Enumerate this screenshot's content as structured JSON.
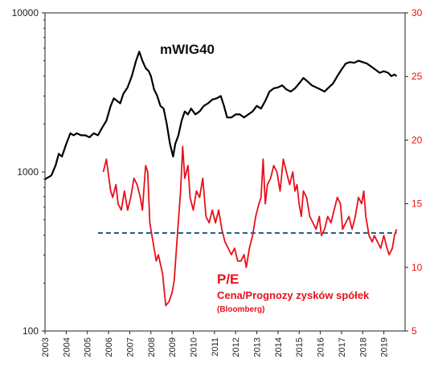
{
  "colors": {
    "index_line": "#000000",
    "pe_line": "#e8101a",
    "reference_line": "#1f5f8b",
    "right_axis": "#e8101a"
  },
  "chart_data": {
    "type": "line",
    "title": "mWIG40",
    "annotation": {
      "line1": "P/E",
      "line2": "Cena/Prognozy zysków spółek",
      "line3": "(Bloomberg)"
    },
    "x_axis": {
      "range": [
        2003.0,
        2020.0
      ],
      "tick_labels": [
        "2003",
        "2004",
        "2005",
        "2006",
        "2007",
        "2008",
        "2009",
        "2010",
        "2011",
        "2012",
        "2013",
        "2014",
        "2015",
        "2016",
        "2017",
        "2018",
        "2019"
      ]
    },
    "y_left": {
      "scale": "log",
      "range": [
        100,
        10000
      ],
      "tick_labels": [
        "100",
        "1000",
        "10000"
      ]
    },
    "y_right": {
      "scale": "linear",
      "range": [
        5,
        30
      ],
      "tick_labels": [
        "5",
        "10",
        "15",
        "20",
        "25",
        "30"
      ]
    },
    "grid": false,
    "series": [
      {
        "name": "mWIG40",
        "axis": "left",
        "points": [
          [
            2003.0,
            900
          ],
          [
            2003.3,
            950
          ],
          [
            2003.5,
            1100
          ],
          [
            2003.65,
            1300
          ],
          [
            2003.8,
            1250
          ],
          [
            2004.0,
            1500
          ],
          [
            2004.2,
            1750
          ],
          [
            2004.35,
            1700
          ],
          [
            2004.5,
            1750
          ],
          [
            2004.7,
            1700
          ],
          [
            2004.9,
            1700
          ],
          [
            2005.1,
            1650
          ],
          [
            2005.3,
            1750
          ],
          [
            2005.5,
            1700
          ],
          [
            2005.7,
            1900
          ],
          [
            2005.9,
            2100
          ],
          [
            2006.1,
            2600
          ],
          [
            2006.25,
            2900
          ],
          [
            2006.4,
            2800
          ],
          [
            2006.55,
            2700
          ],
          [
            2006.7,
            3100
          ],
          [
            2006.9,
            3400
          ],
          [
            2007.1,
            4000
          ],
          [
            2007.3,
            5000
          ],
          [
            2007.45,
            5700
          ],
          [
            2007.6,
            5000
          ],
          [
            2007.75,
            4500
          ],
          [
            2007.9,
            4300
          ],
          [
            2008.0,
            4000
          ],
          [
            2008.15,
            3300
          ],
          [
            2008.3,
            3000
          ],
          [
            2008.45,
            2600
          ],
          [
            2008.6,
            2500
          ],
          [
            2008.75,
            2000
          ],
          [
            2008.9,
            1500
          ],
          [
            2009.05,
            1250
          ],
          [
            2009.15,
            1500
          ],
          [
            2009.3,
            1700
          ],
          [
            2009.45,
            2100
          ],
          [
            2009.6,
            2400
          ],
          [
            2009.75,
            2300
          ],
          [
            2009.9,
            2500
          ],
          [
            2010.1,
            2300
          ],
          [
            2010.3,
            2400
          ],
          [
            2010.5,
            2600
          ],
          [
            2010.7,
            2700
          ],
          [
            2010.9,
            2850
          ],
          [
            2011.1,
            2900
          ],
          [
            2011.3,
            3000
          ],
          [
            2011.45,
            2600
          ],
          [
            2011.6,
            2200
          ],
          [
            2011.8,
            2200
          ],
          [
            2012.0,
            2300
          ],
          [
            2012.2,
            2300
          ],
          [
            2012.4,
            2200
          ],
          [
            2012.6,
            2300
          ],
          [
            2012.8,
            2400
          ],
          [
            2013.0,
            2600
          ],
          [
            2013.2,
            2500
          ],
          [
            2013.4,
            2800
          ],
          [
            2013.6,
            3200
          ],
          [
            2013.8,
            3350
          ],
          [
            2014.0,
            3400
          ],
          [
            2014.2,
            3500
          ],
          [
            2014.4,
            3300
          ],
          [
            2014.6,
            3200
          ],
          [
            2014.8,
            3350
          ],
          [
            2015.0,
            3600
          ],
          [
            2015.2,
            3900
          ],
          [
            2015.4,
            3700
          ],
          [
            2015.6,
            3500
          ],
          [
            2015.8,
            3400
          ],
          [
            2016.0,
            3300
          ],
          [
            2016.2,
            3200
          ],
          [
            2016.4,
            3400
          ],
          [
            2016.6,
            3600
          ],
          [
            2016.8,
            4000
          ],
          [
            2017.0,
            4400
          ],
          [
            2017.2,
            4800
          ],
          [
            2017.4,
            4900
          ],
          [
            2017.6,
            4850
          ],
          [
            2017.8,
            5000
          ],
          [
            2018.0,
            4900
          ],
          [
            2018.2,
            4800
          ],
          [
            2018.4,
            4600
          ],
          [
            2018.6,
            4400
          ],
          [
            2018.8,
            4200
          ],
          [
            2019.0,
            4300
          ],
          [
            2019.2,
            4200
          ],
          [
            2019.35,
            4000
          ],
          [
            2019.5,
            4100
          ],
          [
            2019.6,
            4000
          ]
        ]
      },
      {
        "name": "P/E",
        "axis": "right",
        "points": [
          [
            2005.75,
            17.5
          ],
          [
            2005.9,
            18.5
          ],
          [
            2006.1,
            16.0
          ],
          [
            2006.2,
            15.5
          ],
          [
            2006.35,
            16.5
          ],
          [
            2006.45,
            15.0
          ],
          [
            2006.6,
            14.5
          ],
          [
            2006.75,
            16.0
          ],
          [
            2006.9,
            14.5
          ],
          [
            2007.05,
            15.5
          ],
          [
            2007.2,
            17.0
          ],
          [
            2007.35,
            16.5
          ],
          [
            2007.5,
            15.5
          ],
          [
            2007.6,
            14.5
          ],
          [
            2007.75,
            18.0
          ],
          [
            2007.85,
            17.5
          ],
          [
            2007.95,
            13.5
          ],
          [
            2008.1,
            12.0
          ],
          [
            2008.25,
            10.5
          ],
          [
            2008.35,
            11.0
          ],
          [
            2008.55,
            9.5
          ],
          [
            2008.7,
            7.0
          ],
          [
            2008.85,
            7.3
          ],
          [
            2009.0,
            8.0
          ],
          [
            2009.1,
            9.0
          ],
          [
            2009.25,
            12.5
          ],
          [
            2009.4,
            16.0
          ],
          [
            2009.5,
            19.5
          ],
          [
            2009.6,
            17.0
          ],
          [
            2009.75,
            18.0
          ],
          [
            2009.85,
            15.5
          ],
          [
            2010.0,
            14.5
          ],
          [
            2010.15,
            16.0
          ],
          [
            2010.3,
            15.5
          ],
          [
            2010.45,
            17.0
          ],
          [
            2010.6,
            14.0
          ],
          [
            2010.75,
            13.5
          ],
          [
            2010.9,
            14.5
          ],
          [
            2011.05,
            13.5
          ],
          [
            2011.2,
            14.5
          ],
          [
            2011.35,
            13.0
          ],
          [
            2011.5,
            12.0
          ],
          [
            2011.65,
            11.5
          ],
          [
            2011.8,
            11.0
          ],
          [
            2011.95,
            11.5
          ],
          [
            2012.1,
            10.5
          ],
          [
            2012.25,
            10.5
          ],
          [
            2012.4,
            11.0
          ],
          [
            2012.5,
            10.0
          ],
          [
            2012.65,
            11.5
          ],
          [
            2012.8,
            12.5
          ],
          [
            2012.95,
            14.0
          ],
          [
            2013.1,
            15.0
          ],
          [
            2013.2,
            15.5
          ],
          [
            2013.3,
            18.5
          ],
          [
            2013.4,
            15.0
          ],
          [
            2013.5,
            16.5
          ],
          [
            2013.65,
            17.0
          ],
          [
            2013.8,
            18.0
          ],
          [
            2013.95,
            17.5
          ],
          [
            2014.1,
            16.0
          ],
          [
            2014.25,
            18.5
          ],
          [
            2014.4,
            17.5
          ],
          [
            2014.55,
            16.5
          ],
          [
            2014.7,
            17.5
          ],
          [
            2014.8,
            16.0
          ],
          [
            2014.9,
            16.5
          ],
          [
            2015.0,
            15.0
          ],
          [
            2015.1,
            14.0
          ],
          [
            2015.2,
            16.0
          ],
          [
            2015.35,
            15.5
          ],
          [
            2015.5,
            14.0
          ],
          [
            2015.65,
            13.5
          ],
          [
            2015.8,
            13.0
          ],
          [
            2015.95,
            14.0
          ],
          [
            2016.05,
            12.5
          ],
          [
            2016.2,
            13.0
          ],
          [
            2016.35,
            14.0
          ],
          [
            2016.5,
            13.5
          ],
          [
            2016.65,
            14.5
          ],
          [
            2016.8,
            15.5
          ],
          [
            2016.95,
            15.0
          ],
          [
            2017.05,
            13.0
          ],
          [
            2017.2,
            13.5
          ],
          [
            2017.35,
            14.0
          ],
          [
            2017.5,
            13.0
          ],
          [
            2017.65,
            14.0
          ],
          [
            2017.8,
            15.5
          ],
          [
            2017.95,
            15.0
          ],
          [
            2018.05,
            16.0
          ],
          [
            2018.15,
            14.0
          ],
          [
            2018.3,
            12.5
          ],
          [
            2018.45,
            12.0
          ],
          [
            2018.55,
            12.5
          ],
          [
            2018.7,
            12.0
          ],
          [
            2018.85,
            11.5
          ],
          [
            2019.0,
            12.5
          ],
          [
            2019.15,
            11.5
          ],
          [
            2019.25,
            11.0
          ],
          [
            2019.4,
            11.5
          ],
          [
            2019.5,
            12.5
          ],
          [
            2019.6,
            13.0
          ]
        ]
      },
      {
        "name": "P/E reference",
        "axis": "right",
        "style": "dashed",
        "points": [
          [
            2005.5,
            12.7
          ],
          [
            2019.6,
            12.7
          ]
        ]
      }
    ]
  }
}
